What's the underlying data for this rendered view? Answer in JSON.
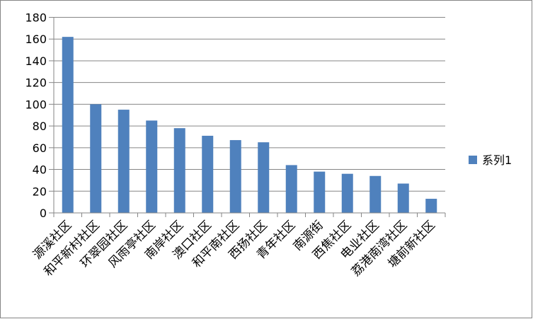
{
  "chart_data": {
    "type": "bar",
    "title": "",
    "xlabel": "",
    "ylabel": "",
    "ylim": [
      0,
      180
    ],
    "yticks": [
      0,
      20,
      40,
      60,
      80,
      100,
      120,
      140,
      160,
      180
    ],
    "grid": true,
    "legend_placement": "right",
    "categories": [
      "源溪社区",
      "和平新村社区",
      "环翠园社区",
      "风雨亭社区",
      "南岸社区",
      "澳口社区",
      "和平南社区",
      "西扬社区",
      "青年社区",
      "南源街",
      "西焦社区",
      "电业社区",
      "荔港南湾社区",
      "塘前新社区"
    ],
    "series": [
      {
        "name": "系列1",
        "color": "#4F81BD",
        "values": [
          162,
          100,
          95,
          85,
          78,
          71,
          67,
          65,
          44,
          38,
          36,
          34,
          27,
          13
        ]
      }
    ]
  }
}
